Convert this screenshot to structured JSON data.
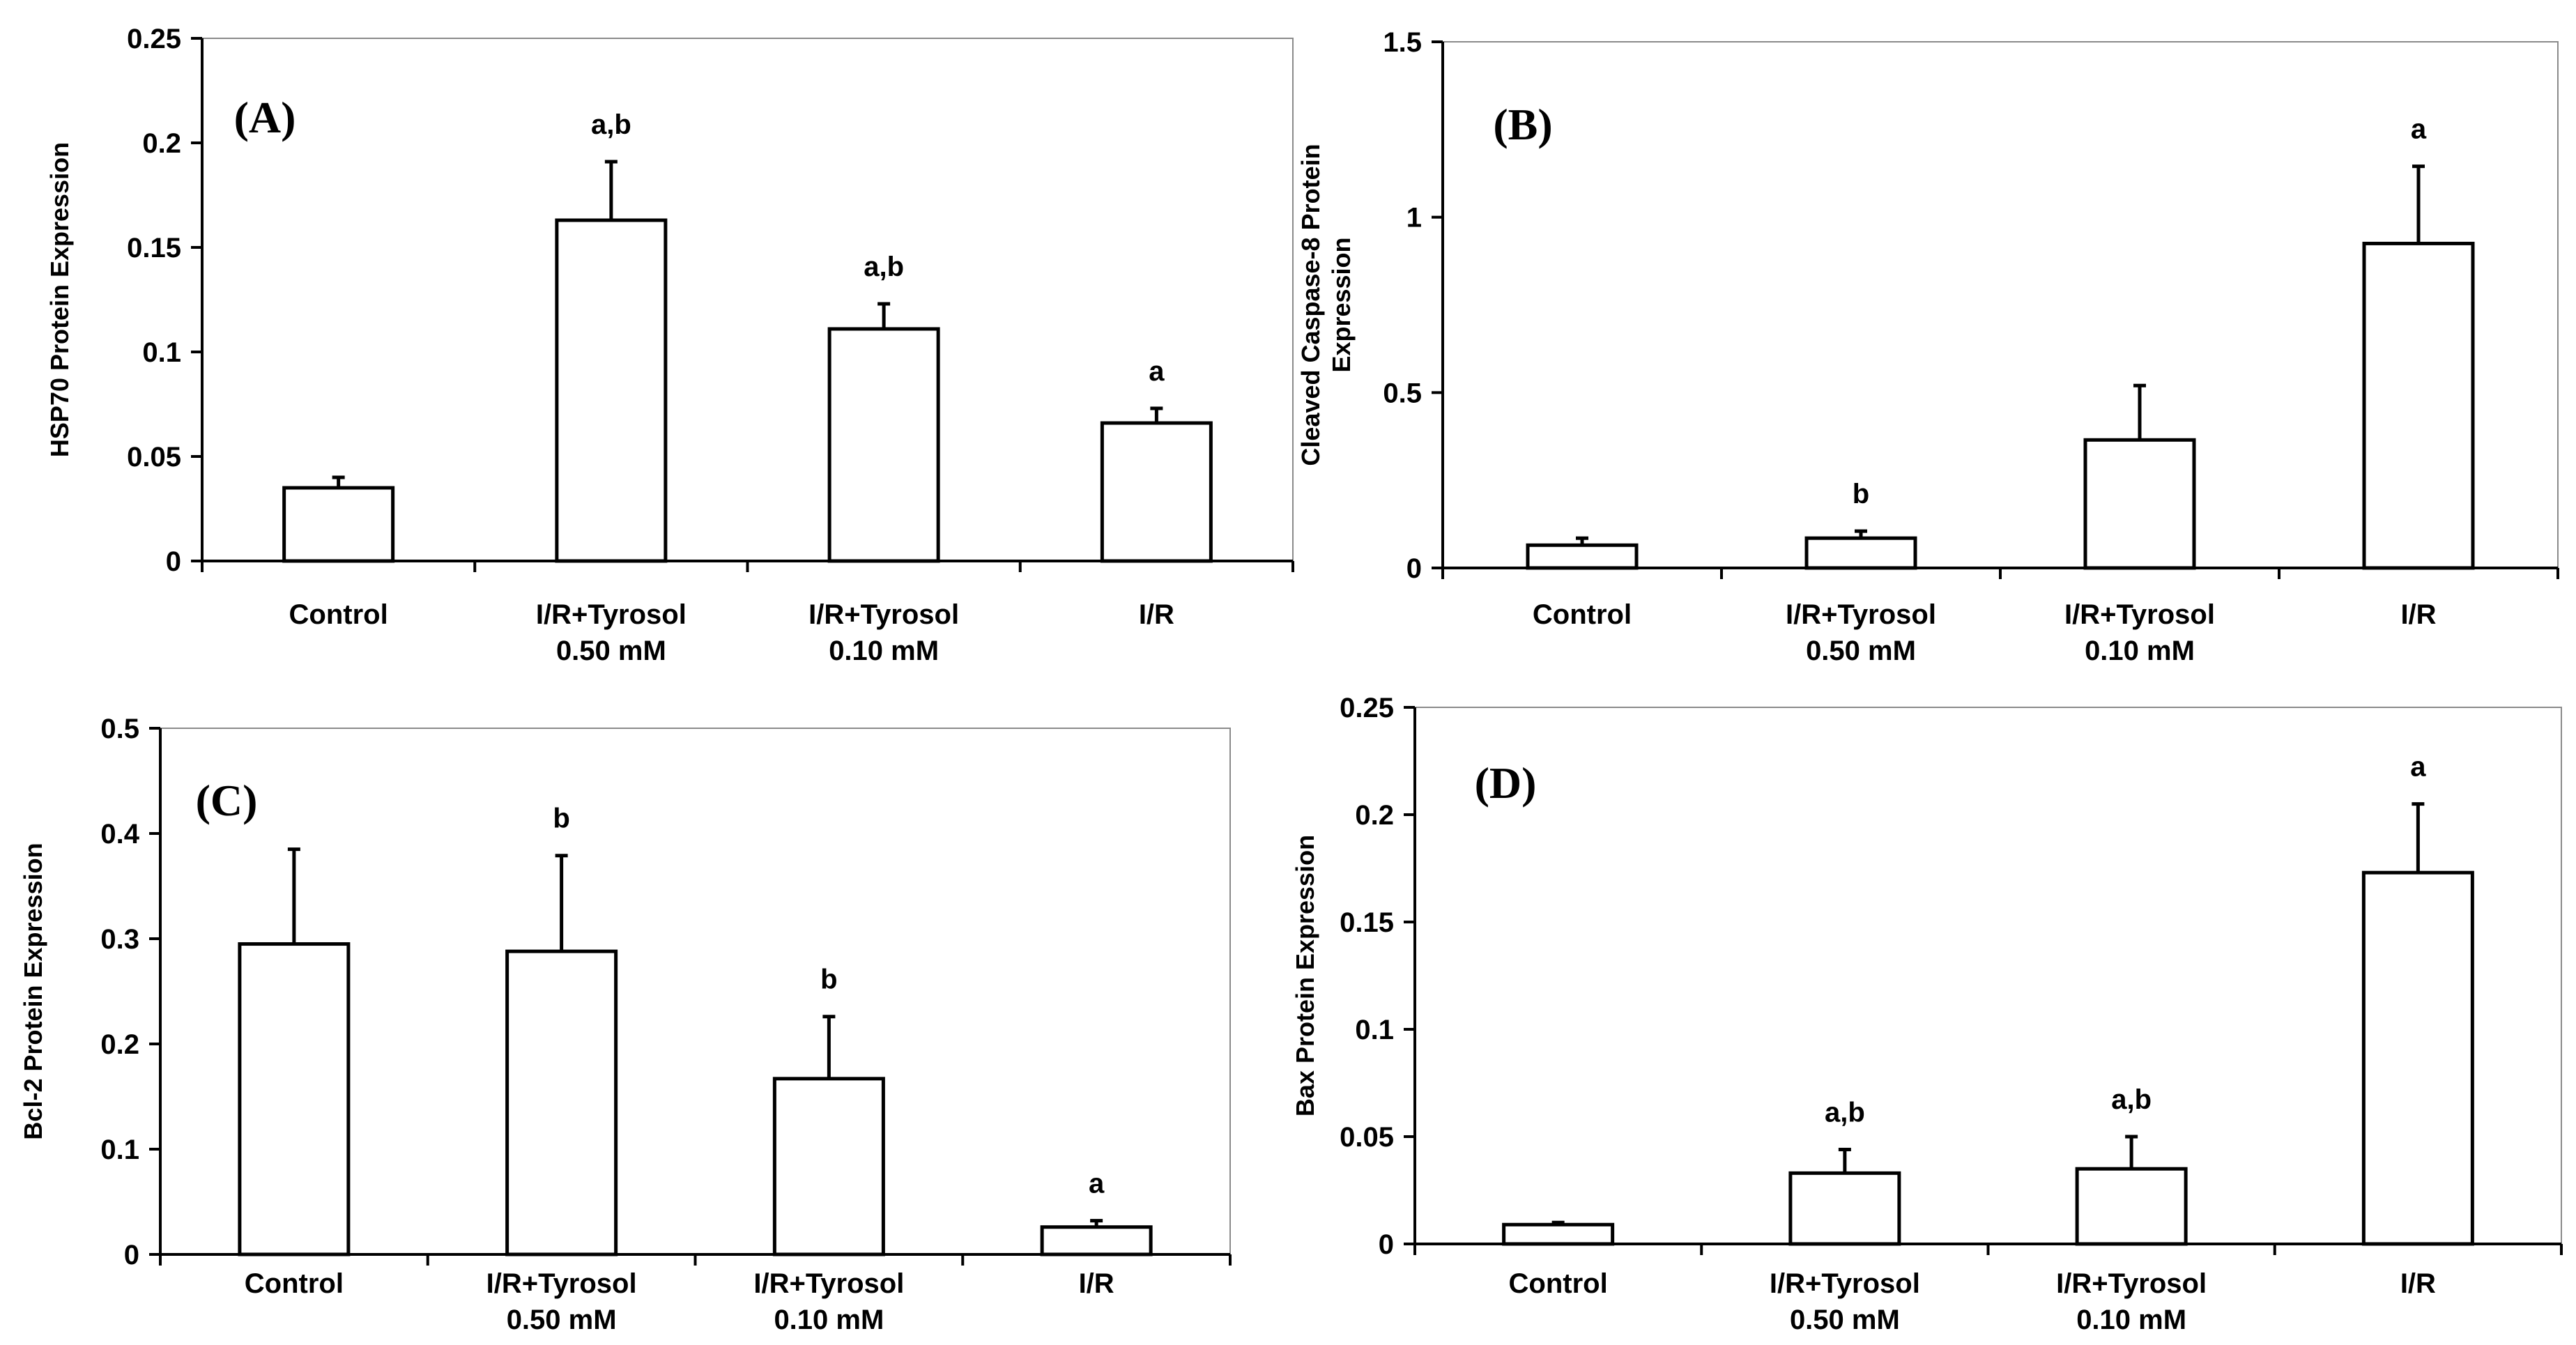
{
  "chart_data": [
    {
      "panel": "A",
      "type": "bar",
      "panel_letter": "(A)",
      "ylabel": [
        "HSP70 Protein Expression"
      ],
      "categories": [
        [
          "Control"
        ],
        [
          "I/R+Tyrosol",
          "0.50 mM"
        ],
        [
          "I/R+Tyrosol",
          "0.10 mM"
        ],
        [
          "I/R"
        ]
      ],
      "values": [
        0.035,
        0.163,
        0.111,
        0.066
      ],
      "errors": [
        0.005,
        0.028,
        0.012,
        0.007
      ],
      "significance": [
        "",
        "a,b",
        "a,b",
        "a"
      ],
      "ylim": [
        0,
        0.25
      ],
      "yticks": [
        0,
        0.05,
        0.1,
        0.15,
        0.2,
        0.25
      ],
      "ytick_labels": [
        "0",
        "0.05",
        "0.1",
        "0.15",
        "0.2",
        "0.25"
      ],
      "grid": false,
      "legend": false
    },
    {
      "panel": "B",
      "type": "bar",
      "panel_letter": "(B)",
      "ylabel": [
        "Cleaved Caspase-8 Protein",
        "Expression"
      ],
      "categories": [
        [
          "Control"
        ],
        [
          "I/R+Tyrosol",
          "0.50 mM"
        ],
        [
          "I/R+Tyrosol",
          "0.10 mM"
        ],
        [
          "I/R"
        ]
      ],
      "values": [
        0.065,
        0.085,
        0.365,
        0.925
      ],
      "errors": [
        0.02,
        0.02,
        0.155,
        0.22
      ],
      "significance": [
        "",
        "b",
        "",
        "a"
      ],
      "ylim": [
        0,
        1.5
      ],
      "yticks": [
        0,
        0.5,
        1,
        1.5
      ],
      "ytick_labels": [
        "0",
        "0.5",
        "1",
        "1.5"
      ],
      "grid": false,
      "legend": false
    },
    {
      "panel": "C",
      "type": "bar",
      "panel_letter": "(C)",
      "ylabel": [
        "Bcl-2 Protein Expression"
      ],
      "categories": [
        [
          "Control"
        ],
        [
          "I/R+Tyrosol",
          "0.50 mM"
        ],
        [
          "I/R+Tyrosol",
          "0.10 mM"
        ],
        [
          "I/R"
        ]
      ],
      "values": [
        0.295,
        0.288,
        0.167,
        0.026
      ],
      "errors": [
        0.09,
        0.091,
        0.059,
        0.006
      ],
      "significance": [
        "",
        "b",
        "b",
        "a"
      ],
      "ylim": [
        0,
        0.5
      ],
      "yticks": [
        0,
        0.1,
        0.2,
        0.3,
        0.4,
        0.5
      ],
      "ytick_labels": [
        "0",
        "0.1",
        "0.2",
        "0.3",
        "0.4",
        "0.5"
      ],
      "grid": false,
      "legend": false
    },
    {
      "panel": "D",
      "type": "bar",
      "panel_letter": "(D)",
      "ylabel": [
        "Bax Protein Expression"
      ],
      "categories": [
        [
          "Control"
        ],
        [
          "I/R+Tyrosol",
          "0.50 mM"
        ],
        [
          "I/R+Tyrosol",
          "0.10 mM"
        ],
        [
          "I/R"
        ]
      ],
      "values": [
        0.009,
        0.033,
        0.035,
        0.173
      ],
      "errors": [
        0.001,
        0.011,
        0.015,
        0.032
      ],
      "significance": [
        "",
        "a,b",
        "a,b",
        "a"
      ],
      "ylim": [
        0,
        0.25
      ],
      "yticks": [
        0,
        0.05,
        0.1,
        0.15,
        0.2,
        0.25
      ],
      "ytick_labels": [
        "0",
        "0.05",
        "0.1",
        "0.15",
        "0.2",
        "0.25"
      ],
      "grid": false,
      "legend": false
    }
  ]
}
